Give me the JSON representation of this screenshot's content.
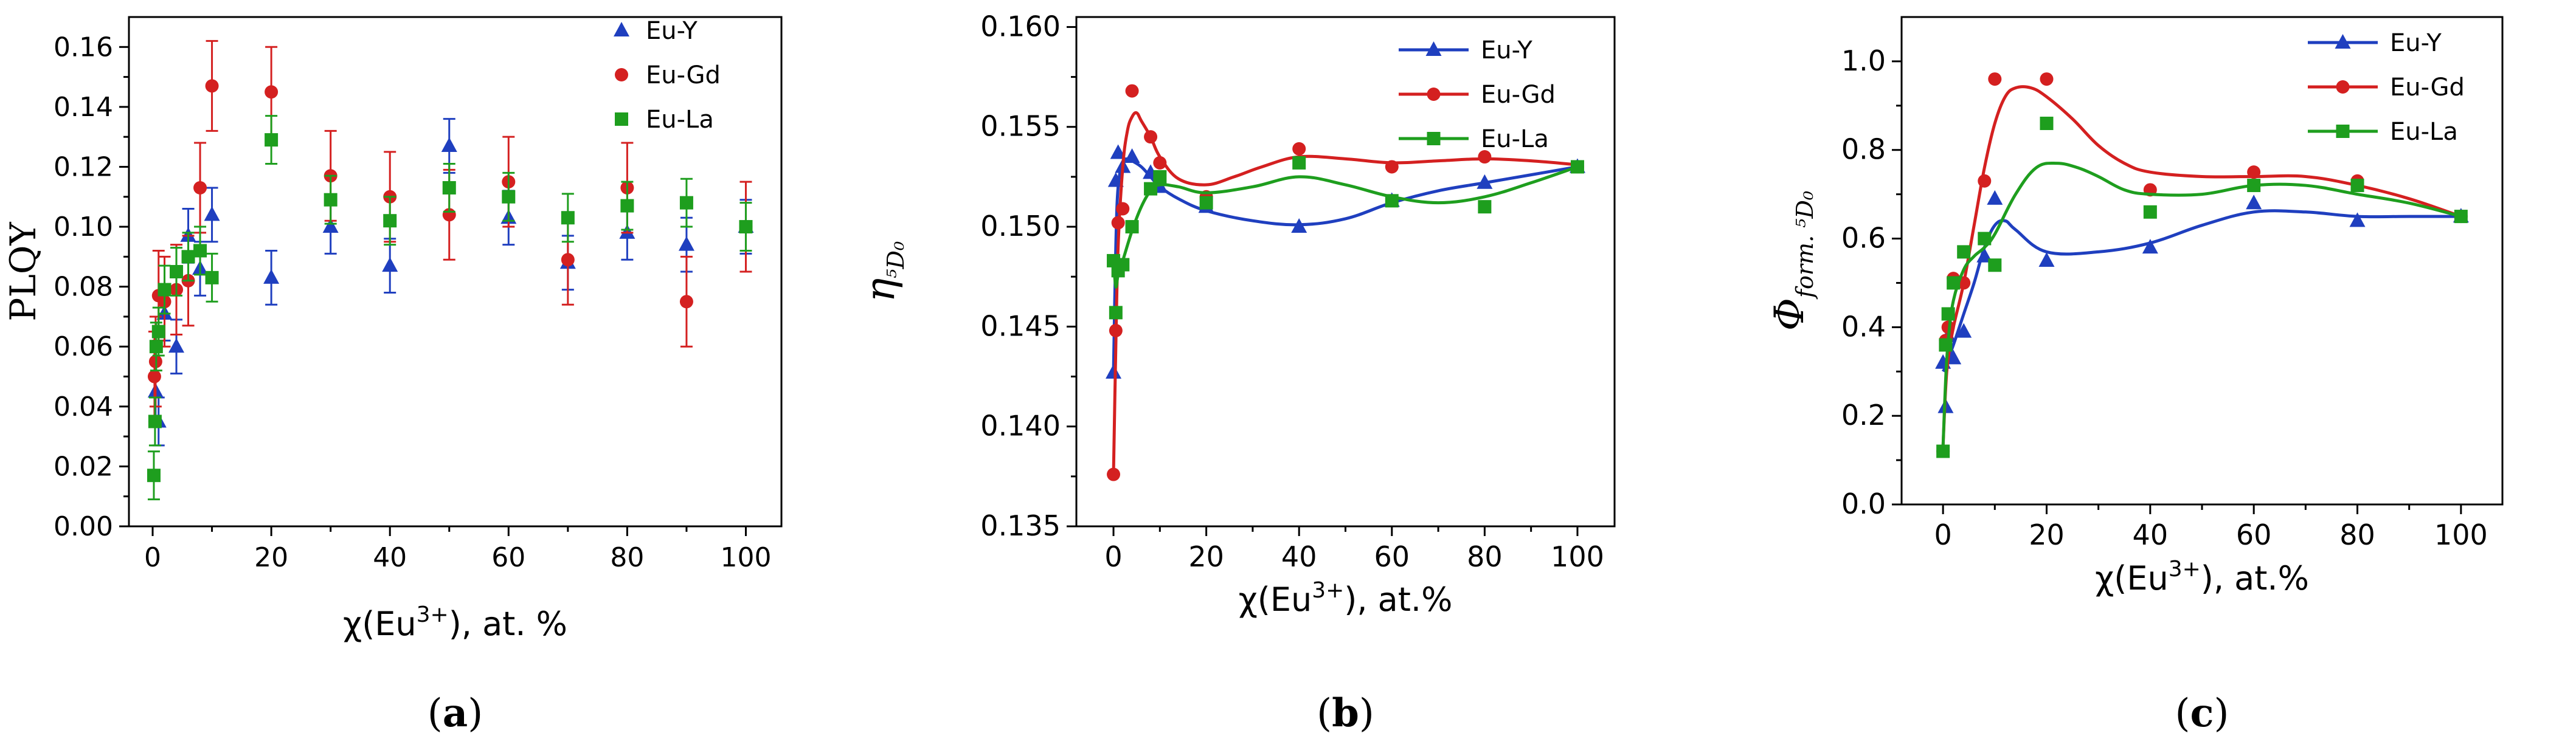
{
  "chart_data": [
    {
      "panel": "a",
      "type": "scatter",
      "panel_label": "a",
      "ylabel": "PLQY",
      "xlabel": {
        "prefix": "χ(Eu",
        "sup": "3+",
        "suffix": "), at. %"
      },
      "xlim": [
        -4,
        106
      ],
      "ylim": [
        0,
        0.17
      ],
      "xticks": [
        0,
        20,
        40,
        60,
        80,
        100
      ],
      "yticks": [
        0.0,
        0.02,
        0.04,
        0.06,
        0.08,
        0.1,
        0.12,
        0.14,
        0.16
      ],
      "ytick_labels": [
        "0.00",
        "0.02",
        "0.04",
        "0.06",
        "0.08",
        "0.10",
        "0.12",
        "0.14",
        "0.16"
      ],
      "legend": "top-right",
      "series": [
        {
          "name": "Eu-Y",
          "color": "#1f3fbf",
          "marker": "triangle",
          "x": [
            0.5,
            1,
            2,
            4,
            6,
            8,
            10,
            20,
            30,
            40,
            50,
            60,
            70,
            80,
            90,
            100
          ],
          "y": [
            0.045,
            0.035,
            0.071,
            0.06,
            0.097,
            0.086,
            0.104,
            0.083,
            0.1,
            0.087,
            0.127,
            0.103,
            0.088,
            0.098,
            0.094,
            0.1
          ],
          "err": [
            0.01,
            0.008,
            0.009,
            0.009,
            0.009,
            0.009,
            0.009,
            0.009,
            0.009,
            0.009,
            0.009,
            0.009,
            0.009,
            0.009,
            0.009,
            0.009
          ]
        },
        {
          "name": "Eu-Gd",
          "color": "#d42020",
          "marker": "circle",
          "x": [
            0.3,
            0.5,
            1,
            2,
            4,
            6,
            8,
            10,
            20,
            30,
            40,
            50,
            60,
            70,
            80,
            90,
            100
          ],
          "y": [
            0.05,
            0.055,
            0.077,
            0.075,
            0.079,
            0.082,
            0.113,
            0.147,
            0.145,
            0.117,
            0.11,
            0.104,
            0.115,
            0.089,
            0.113,
            0.075,
            0.1
          ],
          "err": [
            0.015,
            0.015,
            0.015,
            0.015,
            0.015,
            0.015,
            0.015,
            0.015,
            0.015,
            0.015,
            0.015,
            0.015,
            0.015,
            0.015,
            0.015,
            0.015,
            0.015
          ]
        },
        {
          "name": "Eu-La",
          "color": "#1e9e1e",
          "marker": "square",
          "x": [
            0.2,
            0.4,
            0.6,
            1,
            2,
            4,
            6,
            8,
            10,
            20,
            30,
            40,
            50,
            60,
            70,
            80,
            90,
            100
          ],
          "y": [
            0.017,
            0.035,
            0.06,
            0.065,
            0.079,
            0.085,
            0.09,
            0.092,
            0.083,
            0.129,
            0.109,
            0.102,
            0.113,
            0.11,
            0.103,
            0.107,
            0.108,
            0.1
          ],
          "err": [
            0.008,
            0.008,
            0.008,
            0.008,
            0.008,
            0.008,
            0.008,
            0.008,
            0.008,
            0.008,
            0.008,
            0.008,
            0.008,
            0.008,
            0.008,
            0.008,
            0.008,
            0.008
          ]
        }
      ]
    },
    {
      "panel": "b",
      "type": "line",
      "panel_label": "b",
      "ylabel": {
        "greek": "η",
        "sub": "⁵D₀"
      },
      "xlabel": {
        "prefix": "χ(Eu",
        "sup": "3+",
        "suffix": "), at.%"
      },
      "xlim": [
        -8,
        108
      ],
      "ylim": [
        0.135,
        0.1605
      ],
      "xticks": [
        0,
        20,
        40,
        60,
        80,
        100
      ],
      "yticks": [
        0.135,
        0.14,
        0.145,
        0.15,
        0.155,
        0.16
      ],
      "ytick_labels": [
        "0.135",
        "0.140",
        "0.145",
        "0.150",
        "0.155",
        "0.160"
      ],
      "legend": "top-right",
      "series": [
        {
          "name": "Eu-Y",
          "color": "#1f3fbf",
          "marker": "triangle",
          "x": [
            0,
            0.5,
            1,
            2,
            4,
            8,
            10,
            20,
            40,
            60,
            80,
            100
          ],
          "y": [
            0.1427,
            0.1523,
            0.1537,
            0.153,
            0.1535,
            0.1527,
            0.152,
            0.151,
            0.15,
            0.1513,
            0.1522,
            0.153
          ],
          "fit_x": [
            0,
            0.5,
            1,
            2,
            3,
            4,
            6,
            8,
            10,
            14,
            20,
            30,
            40,
            50,
            60,
            70,
            80,
            90,
            100
          ],
          "fit_y": [
            0.1427,
            0.149,
            0.152,
            0.1532,
            0.1534,
            0.1533,
            0.153,
            0.1525,
            0.152,
            0.1514,
            0.1508,
            0.1503,
            0.1501,
            0.1504,
            0.1512,
            0.1518,
            0.1522,
            0.1526,
            0.153
          ]
        },
        {
          "name": "Eu-Gd",
          "color": "#d42020",
          "marker": "circle",
          "x": [
            0,
            0.5,
            1,
            2,
            4,
            8,
            10,
            20,
            40,
            60,
            80,
            100
          ],
          "y": [
            0.1376,
            0.1448,
            0.1502,
            0.1509,
            0.1568,
            0.1545,
            0.1532,
            0.1515,
            0.1539,
            0.153,
            0.1535,
            0.153
          ],
          "fit_x": [
            0,
            0.5,
            1,
            2,
            3,
            4,
            5,
            6,
            8,
            10,
            14,
            20,
            26,
            32,
            40,
            50,
            60,
            70,
            80,
            90,
            100
          ],
          "fit_y": [
            0.1376,
            0.144,
            0.149,
            0.153,
            0.1548,
            0.1555,
            0.1557,
            0.1553,
            0.1545,
            0.1535,
            0.1524,
            0.1521,
            0.1525,
            0.153,
            0.1535,
            0.1534,
            0.1532,
            0.1533,
            0.1534,
            0.1533,
            0.1531
          ]
        },
        {
          "name": "Eu-La",
          "color": "#1e9e1e",
          "marker": "square",
          "x": [
            0,
            0.5,
            1,
            2,
            4,
            8,
            10,
            20,
            40,
            60,
            80,
            100
          ],
          "y": [
            0.1483,
            0.1457,
            0.1478,
            0.1481,
            0.15,
            0.1519,
            0.1525,
            0.1512,
            0.1532,
            0.1513,
            0.151,
            0.153
          ],
          "fit_x": [
            0,
            0.5,
            1,
            2,
            4,
            6,
            8,
            10,
            14,
            20,
            30,
            40,
            50,
            60,
            70,
            80,
            90,
            100
          ],
          "fit_y": [
            0.1483,
            0.147,
            0.1476,
            0.1483,
            0.1498,
            0.151,
            0.1518,
            0.1521,
            0.152,
            0.1517,
            0.152,
            0.1525,
            0.1521,
            0.1515,
            0.1512,
            0.1515,
            0.1522,
            0.153
          ]
        }
      ]
    },
    {
      "panel": "c",
      "type": "line",
      "panel_label": "c",
      "ylabel": {
        "greek": "Φ",
        "sub": "form. ⁵D₀"
      },
      "xlabel": {
        "prefix": "χ(Eu",
        "sup": "3+",
        "suffix": "), at.%"
      },
      "xlim": [
        -8,
        108
      ],
      "ylim": [
        0,
        1.1
      ],
      "xticks": [
        0,
        20,
        40,
        60,
        80,
        100
      ],
      "yticks": [
        0.0,
        0.2,
        0.4,
        0.6,
        0.8,
        1.0
      ],
      "ytick_labels": [
        "0.0",
        "0.2",
        "0.4",
        "0.6",
        "0.8",
        "1.0"
      ],
      "legend": "top-right",
      "series": [
        {
          "name": "Eu-Y",
          "color": "#1f3fbf",
          "marker": "triangle",
          "x": [
            0,
            0.5,
            1,
            2,
            4,
            8,
            10,
            20,
            40,
            60,
            80,
            100
          ],
          "y": [
            0.32,
            0.22,
            0.38,
            0.33,
            0.39,
            0.56,
            0.69,
            0.55,
            0.58,
            0.68,
            0.64,
            0.65
          ],
          "fit_x": [
            0,
            0.5,
            1,
            2,
            4,
            6,
            8,
            10,
            12,
            14,
            20,
            30,
            40,
            50,
            60,
            70,
            80,
            90,
            100
          ],
          "fit_y": [
            0.3,
            0.31,
            0.33,
            0.36,
            0.43,
            0.5,
            0.58,
            0.63,
            0.64,
            0.62,
            0.57,
            0.57,
            0.59,
            0.63,
            0.66,
            0.66,
            0.65,
            0.65,
            0.65
          ]
        },
        {
          "name": "Eu-Gd",
          "color": "#d42020",
          "marker": "circle",
          "x": [
            0,
            0.5,
            1,
            2,
            4,
            8,
            10,
            20,
            40,
            60,
            80,
            100
          ],
          "y": [
            0.12,
            0.37,
            0.4,
            0.51,
            0.5,
            0.73,
            0.96,
            0.96,
            0.71,
            0.75,
            0.73,
            0.65
          ],
          "fit_x": [
            0,
            0.5,
            1,
            2,
            4,
            6,
            8,
            10,
            12,
            14,
            17,
            20,
            25,
            30,
            35,
            40,
            50,
            60,
            70,
            80,
            90,
            100
          ],
          "fit_y": [
            0.13,
            0.26,
            0.33,
            0.4,
            0.5,
            0.63,
            0.76,
            0.86,
            0.92,
            0.94,
            0.94,
            0.92,
            0.87,
            0.81,
            0.77,
            0.75,
            0.74,
            0.74,
            0.74,
            0.72,
            0.69,
            0.65
          ]
        },
        {
          "name": "Eu-La",
          "color": "#1e9e1e",
          "marker": "square",
          "x": [
            0,
            0.5,
            1,
            2,
            4,
            8,
            10,
            20,
            40,
            60,
            80,
            100
          ],
          "y": [
            0.12,
            0.36,
            0.43,
            0.5,
            0.57,
            0.6,
            0.54,
            0.86,
            0.66,
            0.72,
            0.72,
            0.65
          ],
          "fit_x": [
            0,
            0.5,
            1,
            2,
            4,
            6,
            8,
            10,
            14,
            18,
            22,
            26,
            30,
            35,
            40,
            50,
            60,
            70,
            80,
            90,
            100
          ],
          "fit_y": [
            0.13,
            0.28,
            0.37,
            0.46,
            0.53,
            0.56,
            0.58,
            0.61,
            0.7,
            0.76,
            0.77,
            0.76,
            0.74,
            0.71,
            0.7,
            0.7,
            0.72,
            0.72,
            0.7,
            0.68,
            0.65
          ]
        }
      ]
    }
  ]
}
